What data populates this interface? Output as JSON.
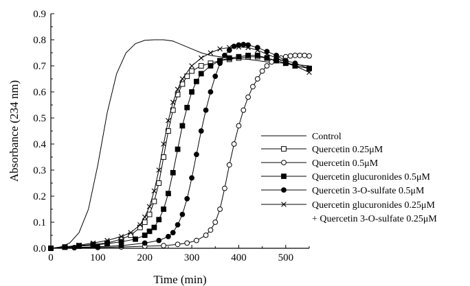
{
  "chart_data": {
    "type": "line",
    "title": "",
    "xlabel": "Time (min)",
    "ylabel": "Absorbance (234 nm)",
    "xlim": [
      0,
      550
    ],
    "ylim": [
      0,
      0.9
    ],
    "xticks": [
      0,
      100,
      200,
      300,
      400,
      500
    ],
    "yticks": [
      0.0,
      0.1,
      0.2,
      0.3,
      0.4,
      0.5,
      0.6,
      0.7,
      0.8,
      0.9
    ],
    "xtick_labels": [
      "0",
      "100",
      "200",
      "300",
      "400",
      "500"
    ],
    "ytick_labels": [
      "0.0",
      "0.1",
      "0.2",
      "0.3",
      "0.4",
      "0.5",
      "0.6",
      "0.7",
      "0.8",
      "0.9"
    ],
    "grid": false,
    "legend_position": "right",
    "legend_extra_line": "+ Quercetin 3-O-sulfate 0.25μM",
    "series": [
      {
        "name": "Control",
        "marker": "none",
        "color": "#000000",
        "x": [
          0,
          20,
          40,
          60,
          80,
          100,
          120,
          140,
          160,
          180,
          200,
          220,
          240,
          260,
          280,
          300,
          320,
          340,
          360,
          380,
          400,
          420,
          440,
          460,
          480,
          500,
          520,
          550
        ],
        "y": [
          0.0,
          0.005,
          0.02,
          0.06,
          0.15,
          0.32,
          0.52,
          0.67,
          0.75,
          0.785,
          0.798,
          0.8,
          0.8,
          0.795,
          0.78,
          0.765,
          0.75,
          0.74,
          0.735,
          0.73,
          0.727,
          0.725,
          0.72,
          0.715,
          0.712,
          0.71,
          0.705,
          0.7
        ]
      },
      {
        "name": "Quercetin 0.25μM",
        "marker": "open-square",
        "color": "#000000",
        "x": [
          0,
          30,
          60,
          90,
          120,
          150,
          170,
          190,
          200,
          210,
          220,
          230,
          240,
          250,
          260,
          270,
          280,
          290,
          300,
          320,
          340,
          360,
          380,
          400,
          420,
          440,
          460,
          480,
          500,
          520,
          550
        ],
        "y": [
          0.0,
          0.005,
          0.01,
          0.015,
          0.02,
          0.035,
          0.05,
          0.08,
          0.1,
          0.13,
          0.18,
          0.25,
          0.35,
          0.45,
          0.53,
          0.59,
          0.63,
          0.66,
          0.68,
          0.7,
          0.71,
          0.72,
          0.725,
          0.73,
          0.735,
          0.735,
          0.73,
          0.72,
          0.71,
          0.7,
          0.69
        ]
      },
      {
        "name": "Quercetin 0.5μM",
        "marker": "open-circle",
        "color": "#000000",
        "x": [
          0,
          50,
          100,
          150,
          200,
          240,
          270,
          290,
          310,
          330,
          340,
          350,
          360,
          370,
          380,
          390,
          400,
          410,
          420,
          430,
          440,
          450,
          460,
          470,
          480,
          490,
          500,
          510,
          520,
          530,
          540,
          550
        ],
        "y": [
          0.0,
          0.002,
          0.003,
          0.005,
          0.008,
          0.01,
          0.015,
          0.02,
          0.03,
          0.05,
          0.07,
          0.1,
          0.15,
          0.23,
          0.32,
          0.4,
          0.47,
          0.53,
          0.58,
          0.62,
          0.65,
          0.68,
          0.7,
          0.715,
          0.725,
          0.73,
          0.735,
          0.738,
          0.74,
          0.74,
          0.74,
          0.738
        ]
      },
      {
        "name": "Quercetin glucuronides 0.5μM",
        "marker": "filled-square",
        "color": "#000000",
        "x": [
          0,
          30,
          60,
          90,
          120,
          150,
          180,
          200,
          210,
          220,
          230,
          240,
          250,
          260,
          270,
          280,
          290,
          300,
          310,
          320,
          340,
          360,
          380,
          400,
          420,
          440,
          460,
          480,
          500,
          520,
          550
        ],
        "y": [
          0.0,
          0.004,
          0.008,
          0.012,
          0.018,
          0.025,
          0.035,
          0.05,
          0.065,
          0.08,
          0.11,
          0.15,
          0.21,
          0.29,
          0.38,
          0.47,
          0.54,
          0.6,
          0.64,
          0.67,
          0.7,
          0.72,
          0.73,
          0.735,
          0.74,
          0.74,
          0.73,
          0.72,
          0.71,
          0.7,
          0.69
        ]
      },
      {
        "name": "Quercetin 3-O-sulfate 0.5μM",
        "marker": "filled-circle",
        "color": "#000000",
        "x": [
          0,
          50,
          100,
          150,
          200,
          230,
          250,
          260,
          270,
          280,
          290,
          300,
          310,
          320,
          330,
          340,
          350,
          360,
          370,
          380,
          390,
          400,
          410,
          420,
          440,
          460,
          480,
          500,
          520,
          550
        ],
        "y": [
          0.0,
          0.003,
          0.006,
          0.01,
          0.02,
          0.03,
          0.045,
          0.06,
          0.09,
          0.13,
          0.19,
          0.27,
          0.36,
          0.45,
          0.53,
          0.6,
          0.66,
          0.71,
          0.74,
          0.76,
          0.775,
          0.78,
          0.782,
          0.78,
          0.77,
          0.755,
          0.74,
          0.72,
          0.71,
          0.69
        ]
      },
      {
        "name": "Quercetin glucuronides 0.25μM",
        "marker": "cross",
        "color": "#000000",
        "x": [
          0,
          30,
          60,
          90,
          120,
          150,
          170,
          190,
          200,
          210,
          220,
          230,
          240,
          250,
          260,
          270,
          280,
          300,
          320,
          340,
          360,
          380,
          400,
          420,
          440,
          460,
          480,
          500,
          520,
          550
        ],
        "y": [
          0.0,
          0.005,
          0.012,
          0.02,
          0.03,
          0.045,
          0.06,
          0.09,
          0.12,
          0.16,
          0.22,
          0.3,
          0.4,
          0.49,
          0.56,
          0.61,
          0.65,
          0.7,
          0.73,
          0.75,
          0.765,
          0.77,
          0.772,
          0.77,
          0.76,
          0.745,
          0.73,
          0.715,
          0.7,
          0.675
        ]
      }
    ]
  }
}
